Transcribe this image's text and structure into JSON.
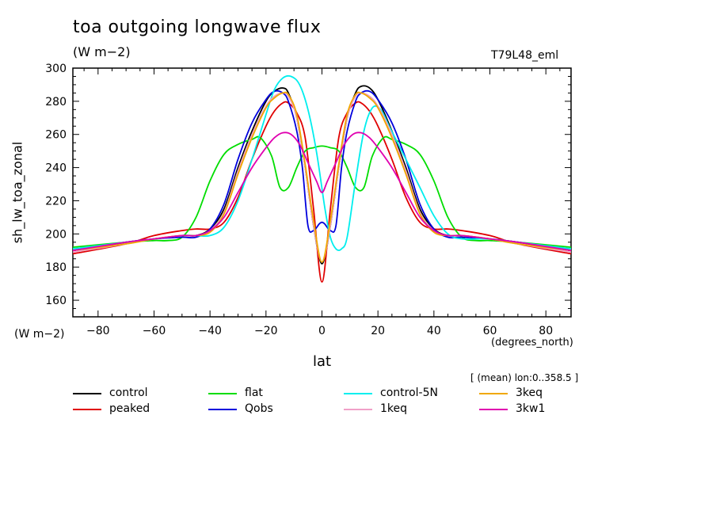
{
  "header": {
    "title": "toa outgoing longwave flux",
    "subtitle": "(W m−2)",
    "run": "T79L48_eml",
    "yunit": "(W m−2)",
    "xunit": "(degrees_north)",
    "mean_note": "[ (mean) lon:0..358.5 ]"
  },
  "chart_data": {
    "type": "line",
    "title": "toa outgoing longwave flux",
    "xlabel": "lat",
    "ylabel": "sh_lw_toa_zonal",
    "xlim": [
      -89,
      89
    ],
    "ylim": [
      150,
      300
    ],
    "xticks": [
      -80,
      -60,
      -40,
      -20,
      0,
      20,
      40,
      60,
      80
    ],
    "yticks": [
      160,
      180,
      200,
      220,
      240,
      260,
      280,
      300
    ],
    "grid": false,
    "legend_position": "bottom",
    "series": [
      {
        "name": "control",
        "color": "#000000",
        "x": [
          -89,
          -70,
          -60,
          -50,
          -45,
          -40,
          -35,
          -30,
          -25,
          -20,
          -17,
          -14,
          -12,
          -9,
          -6,
          -3,
          0,
          3,
          6,
          9,
          12,
          14,
          17,
          20,
          25,
          30,
          35,
          40,
          45,
          50,
          60,
          70,
          89
        ],
        "y": [
          190,
          195,
          197,
          199,
          199,
          203,
          215,
          240,
          262,
          280,
          286,
          288,
          285,
          270,
          240,
          205,
          182,
          205,
          240,
          270,
          285,
          289,
          288,
          281,
          262,
          240,
          215,
          203,
          199,
          199,
          197,
          195,
          190
        ]
      },
      {
        "name": "peaked",
        "color": "#e00000",
        "x": [
          -89,
          -70,
          -60,
          -50,
          -45,
          -40,
          -35,
          -30,
          -25,
          -20,
          -17,
          -14,
          -12,
          -9,
          -6,
          -3,
          0,
          3,
          6,
          9,
          12,
          14,
          17,
          20,
          25,
          30,
          35,
          40,
          45,
          50,
          60,
          70,
          89
        ],
        "y": [
          188,
          194,
          199,
          202,
          203,
          203,
          207,
          222,
          245,
          265,
          274,
          279,
          279,
          273,
          258,
          215,
          171,
          215,
          258,
          273,
          279,
          279,
          274,
          265,
          245,
          222,
          207,
          203,
          203,
          202,
          199,
          194,
          188
        ]
      },
      {
        "name": "flat",
        "color": "#00dd00",
        "x": [
          -89,
          -70,
          -60,
          -55,
          -50,
          -45,
          -40,
          -35,
          -30,
          -25,
          -22,
          -18,
          -15,
          -12,
          -9,
          -6,
          -3,
          0,
          3,
          6,
          9,
          12,
          15,
          18,
          22,
          25,
          30,
          35,
          40,
          45,
          50,
          55,
          60,
          70,
          89
        ],
        "y": [
          192,
          195,
          196,
          196,
          198,
          210,
          232,
          248,
          254,
          257,
          258,
          247,
          228,
          228,
          240,
          250,
          252,
          253,
          252,
          250,
          240,
          228,
          228,
          247,
          258,
          257,
          254,
          248,
          232,
          210,
          198,
          196,
          196,
          195,
          192
        ]
      },
      {
        "name": "Qobs",
        "color": "#0000dd",
        "x": [
          -89,
          -70,
          -60,
          -50,
          -45,
          -40,
          -35,
          -30,
          -25,
          -20,
          -17,
          -14,
          -12,
          -9,
          -7,
          -5,
          -3,
          -1,
          0,
          1,
          3,
          5,
          7,
          9,
          12,
          14,
          17,
          20,
          25,
          30,
          35,
          40,
          45,
          50,
          60,
          70,
          89
        ],
        "y": [
          190,
          195,
          197,
          198,
          198,
          203,
          218,
          245,
          267,
          281,
          286,
          285,
          280,
          262,
          240,
          205,
          202,
          206,
          207,
          206,
          202,
          205,
          240,
          262,
          280,
          285,
          286,
          281,
          267,
          245,
          218,
          203,
          198,
          198,
          197,
          195,
          190
        ]
      },
      {
        "name": "control-5N",
        "color": "#00eeee",
        "x": [
          -89,
          -70,
          -60,
          -50,
          -45,
          -40,
          -35,
          -30,
          -25,
          -20,
          -17,
          -14,
          -11,
          -8,
          -5,
          -2,
          1,
          3,
          5,
          7,
          9,
          12,
          15,
          18,
          21,
          24,
          27,
          30,
          35,
          40,
          45,
          50,
          60,
          70,
          89
        ],
        "y": [
          191,
          195,
          197,
          199,
          199,
          199,
          204,
          220,
          245,
          272,
          287,
          294,
          295,
          290,
          275,
          250,
          216,
          198,
          191,
          191,
          198,
          232,
          262,
          276,
          275,
          265,
          255,
          245,
          228,
          211,
          200,
          197,
          197,
          195,
          191
        ]
      },
      {
        "name": "1keq",
        "color": "#f0a0c8",
        "x": [
          -89,
          -70,
          -60,
          -50,
          -45,
          -40,
          -35,
          -30,
          -25,
          -20,
          -17,
          -14,
          -12,
          -9,
          -6,
          -3,
          0,
          3,
          6,
          9,
          12,
          14,
          17,
          20,
          25,
          30,
          35,
          40,
          45,
          50,
          60,
          70,
          89
        ],
        "y": [
          189,
          194,
          197,
          199,
          199,
          202,
          213,
          238,
          260,
          277,
          283,
          285,
          283,
          270,
          240,
          205,
          183,
          205,
          240,
          270,
          283,
          285,
          283,
          277,
          260,
          238,
          213,
          202,
          199,
          199,
          197,
          194,
          189
        ]
      },
      {
        "name": "3keq",
        "color": "#f0a800",
        "x": [
          -89,
          -70,
          -60,
          -50,
          -45,
          -40,
          -35,
          -30,
          -25,
          -20,
          -17,
          -14,
          -12,
          -9,
          -6,
          -3,
          0,
          3,
          6,
          9,
          12,
          14,
          17,
          20,
          25,
          30,
          35,
          40,
          45,
          50,
          60,
          70,
          89
        ],
        "y": [
          190,
          194,
          197,
          199,
          199,
          201,
          212,
          236,
          258,
          276,
          282,
          285,
          284,
          272,
          242,
          208,
          183,
          208,
          242,
          272,
          284,
          285,
          282,
          276,
          258,
          236,
          212,
          201,
          199,
          199,
          197,
          194,
          190
        ]
      },
      {
        "name": "3kw1",
        "color": "#e000b0",
        "x": [
          -89,
          -70,
          -60,
          -50,
          -45,
          -40,
          -35,
          -30,
          -25,
          -20,
          -17,
          -14,
          -11,
          -8,
          -5,
          -2,
          0,
          2,
          5,
          8,
          11,
          14,
          17,
          20,
          25,
          30,
          35,
          40,
          45,
          50,
          60,
          70,
          89
        ],
        "y": [
          190,
          195,
          197,
          199,
          199,
          202,
          210,
          225,
          240,
          252,
          258,
          261,
          260,
          254,
          243,
          232,
          225,
          232,
          243,
          254,
          260,
          261,
          258,
          252,
          240,
          225,
          210,
          202,
          199,
          199,
          197,
          195,
          190
        ]
      }
    ]
  }
}
